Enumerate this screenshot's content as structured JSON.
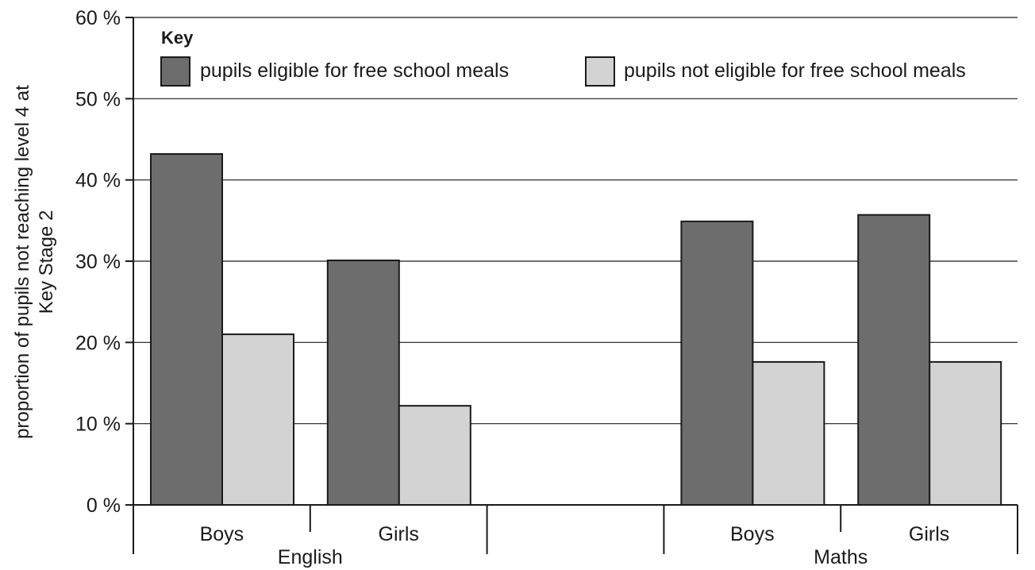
{
  "chart_data": {
    "type": "bar",
    "ylabel": [
      "proportion of pupils not reaching level 4 at",
      "Key Stage 2"
    ],
    "ylim": [
      0,
      60
    ],
    "yticks": [
      0,
      10,
      20,
      30,
      40,
      50,
      60
    ],
    "ytick_labels": [
      "0 %",
      "10 %",
      "20 %",
      "30 %",
      "40 %",
      "50 %",
      "60 %"
    ],
    "grid": true,
    "legend": {
      "title": "Key",
      "placement": "top",
      "entries": [
        "pupils eligible for free school meals",
        "pupils not eligible for free school meals"
      ]
    },
    "groups": [
      {
        "name": "English",
        "categories": [
          "Boys",
          "Girls"
        ]
      },
      {
        "name": "Maths",
        "categories": [
          "Boys",
          "Girls"
        ]
      }
    ],
    "series": [
      {
        "name": "pupils eligible for free school meals",
        "color": "#6d6d6d",
        "values": [
          43.2,
          30.1,
          34.9,
          35.7
        ]
      },
      {
        "name": "pupils not eligible for free school meals",
        "color": "#d3d3d3",
        "values": [
          21.0,
          12.2,
          17.6,
          17.6
        ]
      }
    ]
  }
}
